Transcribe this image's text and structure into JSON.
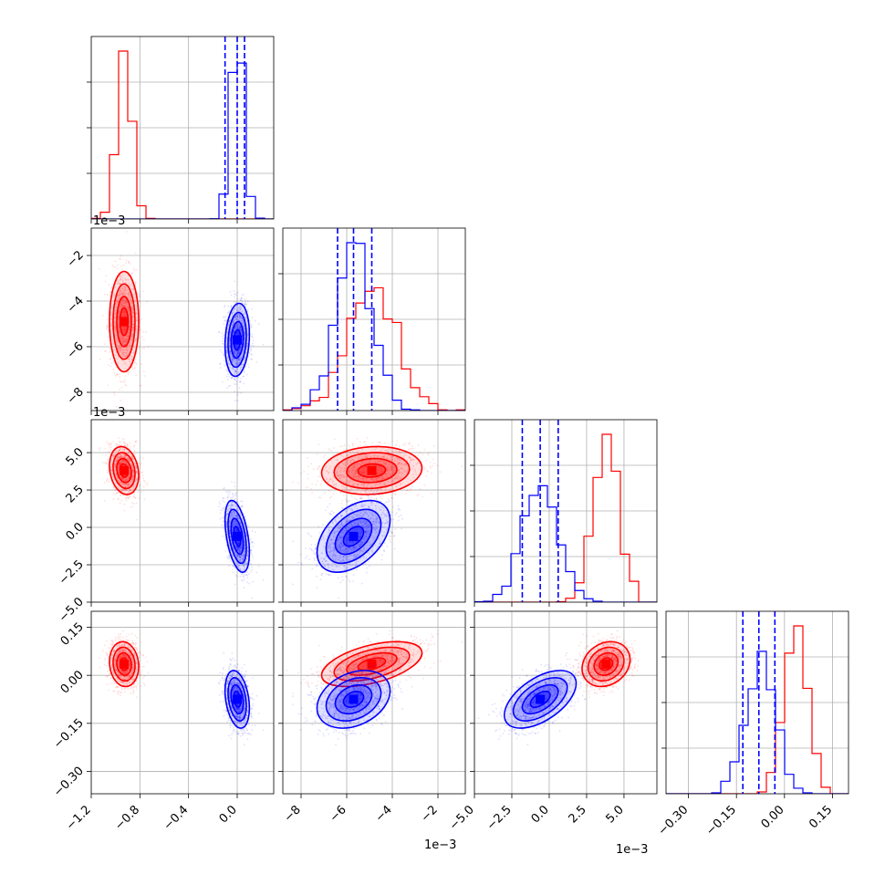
{
  "figure": {
    "type": "corner-plot",
    "colors": {
      "red": "#ff0000",
      "blue": "#0000ff",
      "grid": "#b0b0b0",
      "frame": "#000000"
    },
    "offset_label": "1e−3"
  },
  "chart_data": {
    "type": "corner",
    "series": [
      {
        "color": "#ff0000",
        "means": [
          -0.93,
          -0.0049,
          0.0038,
          0.035
        ],
        "sds": [
          0.06,
          0.0011,
          0.0008,
          0.035
        ],
        "corr": [
          [
            1,
            0,
            -0.2,
            -0.1
          ],
          [
            0,
            1,
            0.1,
            0.5
          ],
          [
            -0.2,
            0.1,
            1,
            0.2
          ],
          [
            -0.1,
            0.5,
            0.2,
            1
          ]
        ]
      },
      {
        "color": "#0000ff",
        "means": [
          0.0,
          -0.0057,
          -0.0006,
          -0.075
        ],
        "sds": [
          0.05,
          0.0008,
          0.0012,
          0.045
        ],
        "corr": [
          [
            1,
            0.15,
            -0.45,
            -0.3
          ],
          [
            0.15,
            1,
            0.45,
            0.3
          ],
          [
            -0.45,
            0.45,
            1,
            0.55
          ],
          [
            -0.3,
            0.3,
            0.55,
            1
          ]
        ]
      }
    ],
    "quantile_lines_blue": [
      [
        -0.1,
        0.0,
        0.06
      ],
      [
        -0.0064,
        -0.0057,
        -0.0049
      ],
      [
        -0.0018,
        -0.0006,
        0.0006
      ],
      [
        -0.13,
        -0.08,
        -0.03
      ]
    ],
    "axes": [
      {
        "range": [
          -1.2,
          0.3
        ],
        "ticks": [
          "−1.2",
          "−0.8",
          "−0.4",
          "0.0"
        ],
        "tick_values": [
          -1.2,
          -0.8,
          -0.4,
          0.0
        ],
        "offset": false
      },
      {
        "range": [
          -0.0088,
          -0.0008
        ],
        "ticks": [
          "−8",
          "−6",
          "−4",
          "−2"
        ],
        "tick_values": [
          -0.008,
          -0.006,
          -0.004,
          -0.002
        ],
        "offset": true
      },
      {
        "range": [
          -0.005,
          0.0072
        ],
        "ticks": [
          "−5.0",
          "−2.5",
          "0.0",
          "2.5",
          "5.0"
        ],
        "tick_values": [
          -0.005,
          -0.0025,
          0.0,
          0.0025,
          0.005
        ],
        "offset": true
      },
      {
        "range": [
          -0.37,
          0.2
        ],
        "ticks": [
          "−0.30",
          "−0.15",
          "0.00",
          "0.15"
        ],
        "tick_values": [
          -0.3,
          -0.15,
          0.0,
          0.15
        ],
        "offset": false
      }
    ]
  }
}
